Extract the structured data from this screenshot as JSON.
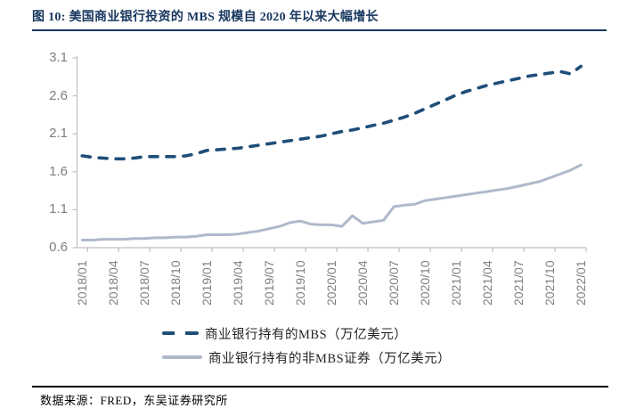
{
  "header": {
    "title": "图 10:  美国商业银行投资的 MBS 规模自 2020 年以来大幅增长"
  },
  "chart_data": {
    "type": "line",
    "title": "美国商业银行投资的 MBS 规模自 2020 年以来大幅增长",
    "xlabel": "",
    "ylabel": "",
    "ylim": [
      0.6,
      3.1
    ],
    "yticks": [
      0.6,
      1.1,
      1.6,
      2.1,
      2.6,
      3.1
    ],
    "grid": false,
    "legend_position": "bottom",
    "x_tick_every": 3,
    "x": [
      "2018/01",
      "2018/02",
      "2018/03",
      "2018/04",
      "2018/05",
      "2018/06",
      "2018/07",
      "2018/08",
      "2018/09",
      "2018/10",
      "2018/11",
      "2018/12",
      "2019/01",
      "2019/02",
      "2019/03",
      "2019/04",
      "2019/05",
      "2019/06",
      "2019/07",
      "2019/08",
      "2019/09",
      "2019/10",
      "2019/11",
      "2019/12",
      "2020/01",
      "2020/02",
      "2020/03",
      "2020/04",
      "2020/05",
      "2020/06",
      "2020/07",
      "2020/08",
      "2020/09",
      "2020/10",
      "2020/11",
      "2020/12",
      "2021/01",
      "2021/02",
      "2021/03",
      "2021/04",
      "2021/05",
      "2021/06",
      "2021/07",
      "2021/08",
      "2021/09",
      "2021/10",
      "2021/11",
      "2021/12",
      "2022/01"
    ],
    "series": [
      {
        "name": "商业银行持有的MBS（万亿美元）",
        "style": "dashed",
        "color": "#1F4E79",
        "values": [
          1.81,
          1.79,
          1.78,
          1.77,
          1.77,
          1.78,
          1.8,
          1.8,
          1.8,
          1.8,
          1.81,
          1.84,
          1.88,
          1.89,
          1.9,
          1.91,
          1.93,
          1.95,
          1.97,
          1.99,
          2.01,
          2.03,
          2.05,
          2.07,
          2.1,
          2.13,
          2.15,
          2.18,
          2.21,
          2.24,
          2.28,
          2.32,
          2.37,
          2.43,
          2.49,
          2.55,
          2.61,
          2.66,
          2.7,
          2.74,
          2.77,
          2.8,
          2.83,
          2.86,
          2.88,
          2.9,
          2.92,
          2.89,
          2.99
        ]
      },
      {
        "name": "商业银行持有的非MBS证券（万亿美元）",
        "style": "solid",
        "color": "#AFB9CA",
        "values": [
          0.7,
          0.7,
          0.71,
          0.71,
          0.71,
          0.72,
          0.72,
          0.73,
          0.73,
          0.74,
          0.74,
          0.75,
          0.77,
          0.77,
          0.77,
          0.78,
          0.8,
          0.82,
          0.85,
          0.88,
          0.93,
          0.95,
          0.91,
          0.9,
          0.9,
          0.88,
          1.02,
          0.92,
          0.94,
          0.96,
          1.14,
          1.16,
          1.17,
          1.22,
          1.24,
          1.26,
          1.28,
          1.3,
          1.32,
          1.34,
          1.36,
          1.38,
          1.41,
          1.44,
          1.47,
          1.52,
          1.57,
          1.62,
          1.69
        ]
      }
    ]
  },
  "legend": {
    "items": [
      {
        "label": "商业银行持有的MBS（万亿美元）"
      },
      {
        "label": "商业银行持有的非MBS证券（万亿美元）"
      }
    ]
  },
  "footer": {
    "source": "数据来源：FRED，东吴证券研究所"
  },
  "colors": {
    "title": "#17365D",
    "mbs_line": "#1F4E79",
    "non_mbs_line": "#AFB9CA",
    "axis": "#BFBFBF",
    "tick_label": "#7F7F7F"
  }
}
